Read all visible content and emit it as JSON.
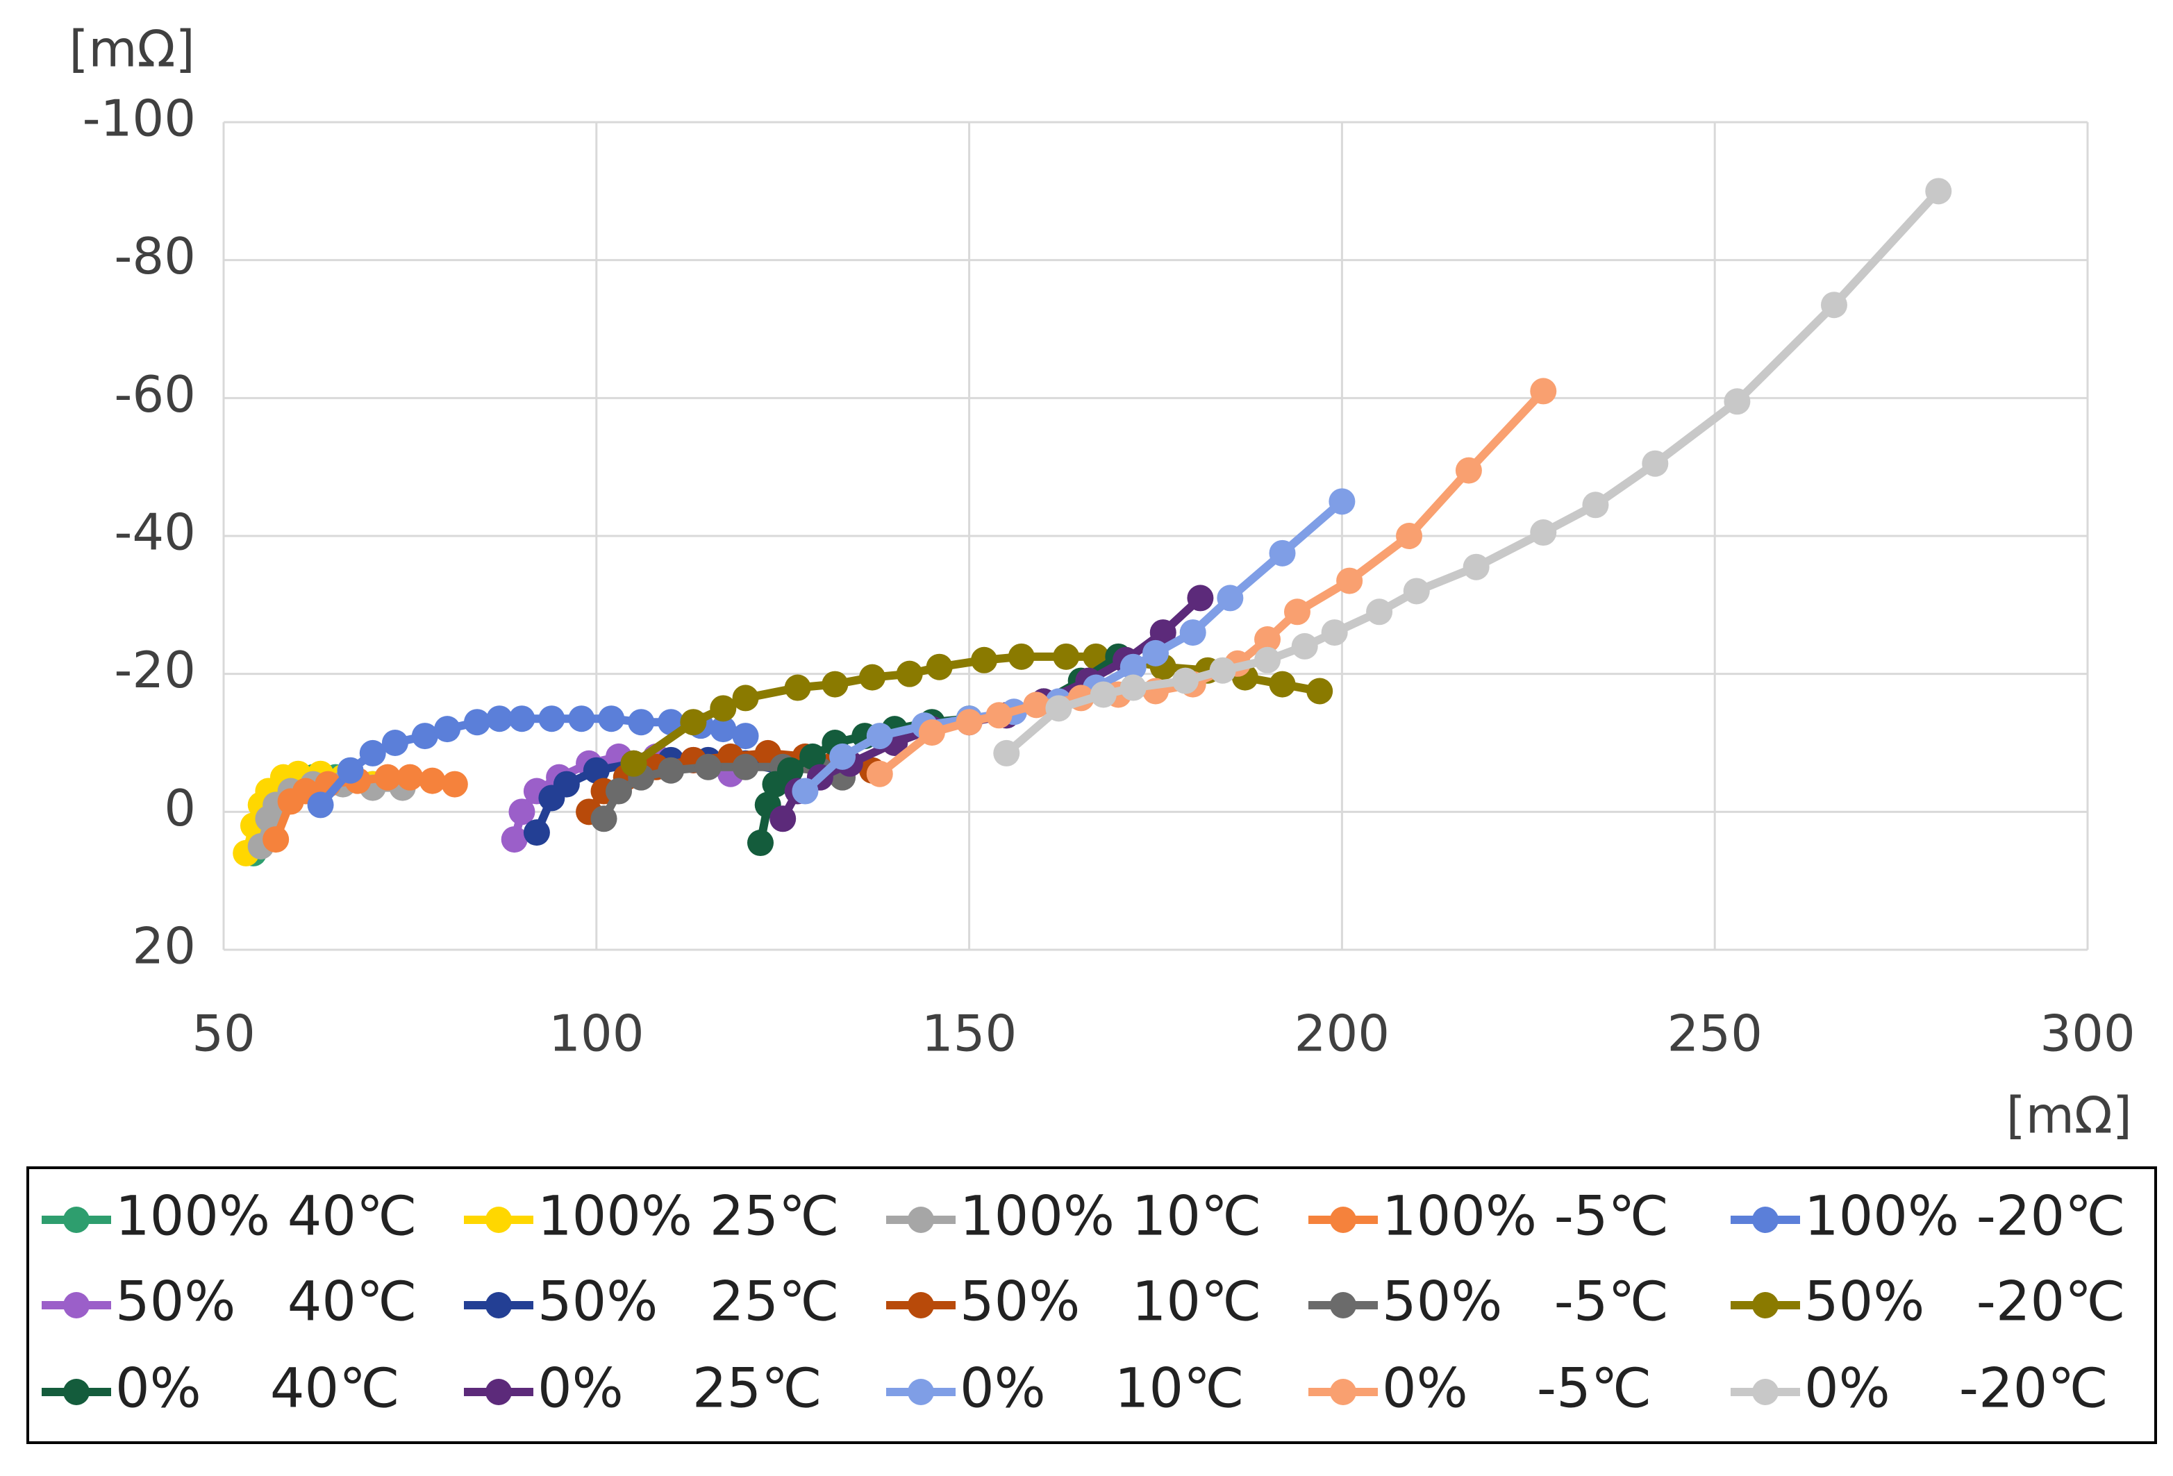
{
  "chart_data": {
    "type": "line",
    "x_axis_label": "[mΩ]",
    "y_axis_label": "[mΩ]",
    "xlim": [
      50,
      300
    ],
    "xticks": [
      50,
      100,
      150,
      200,
      250,
      300
    ],
    "ylim": [
      20,
      -100
    ],
    "yticks": [
      -100,
      -80,
      -60,
      -40,
      -20,
      0,
      20
    ],
    "grid": true,
    "legend": "bottom",
    "series": [
      {
        "name": "100% 40℃",
        "color": "#2e9e6e",
        "x": [
          54,
          55,
          56,
          57,
          58,
          60,
          62,
          65,
          70
        ],
        "values": [
          6,
          3,
          0,
          -2,
          -3,
          -4,
          -5,
          -5,
          -4
        ]
      },
      {
        "name": "100% 25℃",
        "color": "#ffd700",
        "x": [
          53,
          54,
          55,
          56,
          58,
          60,
          63,
          66,
          70
        ],
        "values": [
          6,
          2,
          -1,
          -3,
          -5,
          -5.5,
          -5.5,
          -5,
          -4
        ]
      },
      {
        "name": "100% 10℃",
        "color": "#a6a6a6",
        "x": [
          55,
          56,
          57,
          59,
          62,
          66,
          70,
          74
        ],
        "values": [
          5,
          1,
          -1,
          -3,
          -4,
          -4,
          -3.5,
          -3.5
        ]
      },
      {
        "name": "100% -5℃",
        "color": "#f5823c",
        "x": [
          57,
          59,
          61,
          64,
          68,
          72,
          75,
          78,
          81
        ],
        "values": [
          4,
          -1.5,
          -3,
          -4,
          -4.5,
          -5,
          -5,
          -4.5,
          -4
        ]
      },
      {
        "name": "100% -20℃",
        "color": "#5b7fd9",
        "x": [
          63,
          67,
          70,
          73,
          77,
          80,
          84,
          87,
          90,
          94,
          98,
          102,
          106,
          110,
          114,
          117,
          120
        ],
        "values": [
          -1,
          -6,
          -8.5,
          -10,
          -11,
          -12,
          -13,
          -13.5,
          -13.5,
          -13.5,
          -13.5,
          -13.5,
          -13,
          -13,
          -12.5,
          -12,
          -11
        ]
      },
      {
        "name": "50%   40℃",
        "color": "#9b5fc9",
        "x": [
          89,
          90,
          92,
          95,
          99,
          103,
          108,
          113,
          118
        ],
        "values": [
          4,
          0,
          -3,
          -5,
          -7,
          -8,
          -8,
          -7.5,
          -5.5
        ]
      },
      {
        "name": "50%   25℃",
        "color": "#233f94",
        "x": [
          92,
          94,
          96,
          100,
          105,
          110,
          115,
          120,
          125
        ],
        "values": [
          3,
          -2,
          -4,
          -6,
          -7,
          -7.5,
          -7.5,
          -7,
          -6
        ]
      },
      {
        "name": "50%   10℃",
        "color": "#b84a0a",
        "x": [
          99,
          101,
          104,
          108,
          113,
          118,
          123,
          128,
          132,
          137
        ],
        "values": [
          0,
          -3,
          -5,
          -6.5,
          -7.5,
          -8,
          -8.5,
          -8,
          -7,
          -6
        ]
      },
      {
        "name": "50%   -5℃",
        "color": "#6b6b6b",
        "x": [
          101,
          103,
          106,
          110,
          115,
          120,
          125,
          130,
          133
        ],
        "values": [
          1,
          -3,
          -5,
          -6,
          -6.5,
          -6.5,
          -6.5,
          -6,
          -5
        ]
      },
      {
        "name": "50%   -20℃",
        "color": "#8a7a00",
        "x": [
          105,
          113,
          117,
          120,
          127,
          132,
          137,
          142,
          146,
          152,
          157,
          163,
          167,
          171,
          176,
          182,
          187,
          192,
          197
        ],
        "values": [
          -7,
          -13,
          -15,
          -16.5,
          -18,
          -18.5,
          -19.5,
          -20,
          -21,
          -22,
          -22.5,
          -22.5,
          -22.5,
          -22,
          -21,
          -20.5,
          -19.5,
          -18.5,
          -17.5
        ]
      },
      {
        "name": "0%    40℃",
        "color": "#145c3c",
        "x": [
          122,
          123,
          124,
          126,
          129,
          132,
          136,
          140,
          145,
          150,
          155,
          160,
          165,
          170
        ],
        "values": [
          4.5,
          -1,
          -4,
          -6,
          -8,
          -10,
          -11,
          -12,
          -13,
          -13.5,
          -14,
          -16,
          -19,
          -22.5
        ]
      },
      {
        "name": "0%    25℃",
        "color": "#5c2a7a",
        "x": [
          125,
          127,
          130,
          134,
          140,
          145,
          150,
          155,
          160,
          166,
          171,
          176,
          181
        ],
        "values": [
          1,
          -3,
          -5,
          -7,
          -10,
          -12,
          -13,
          -14,
          -16,
          -19,
          -22,
          -26,
          -31
        ]
      },
      {
        "name": "0%    10℃",
        "color": "#7f9ee6",
        "x": [
          128,
          133,
          138,
          144,
          150,
          156,
          162,
          167,
          172,
          175,
          180,
          185,
          192,
          200
        ],
        "values": [
          -3,
          -8,
          -11,
          -12.5,
          -13.5,
          -14.5,
          -16,
          -18,
          -21,
          -23,
          -26,
          -31,
          -37.5,
          -45
        ]
      },
      {
        "name": "0%    -5℃",
        "color": "#f9a070",
        "x": [
          138,
          145,
          150,
          154,
          159,
          165,
          170,
          175,
          180,
          186,
          190,
          194,
          201,
          209,
          217,
          227
        ],
        "values": [
          -5.5,
          -11.5,
          -13,
          -14,
          -15.5,
          -16.5,
          -17,
          -17.5,
          -18.5,
          -21.5,
          -25,
          -29,
          -33.5,
          -40,
          -49.5,
          -61
        ]
      },
      {
        "name": "0%    -20℃",
        "color": "#c8c8c8",
        "x": [
          155,
          162,
          168,
          172,
          179,
          184,
          190,
          195,
          199,
          205,
          210,
          218,
          227,
          234,
          242,
          253,
          266,
          280
        ],
        "values": [
          -8.5,
          -15,
          -17,
          -18,
          -19,
          -20.5,
          -22,
          -24,
          -26,
          -29,
          -32,
          -35.5,
          -40.5,
          -44.5,
          -50.5,
          -59.5,
          -73.5,
          -90
        ]
      }
    ]
  }
}
